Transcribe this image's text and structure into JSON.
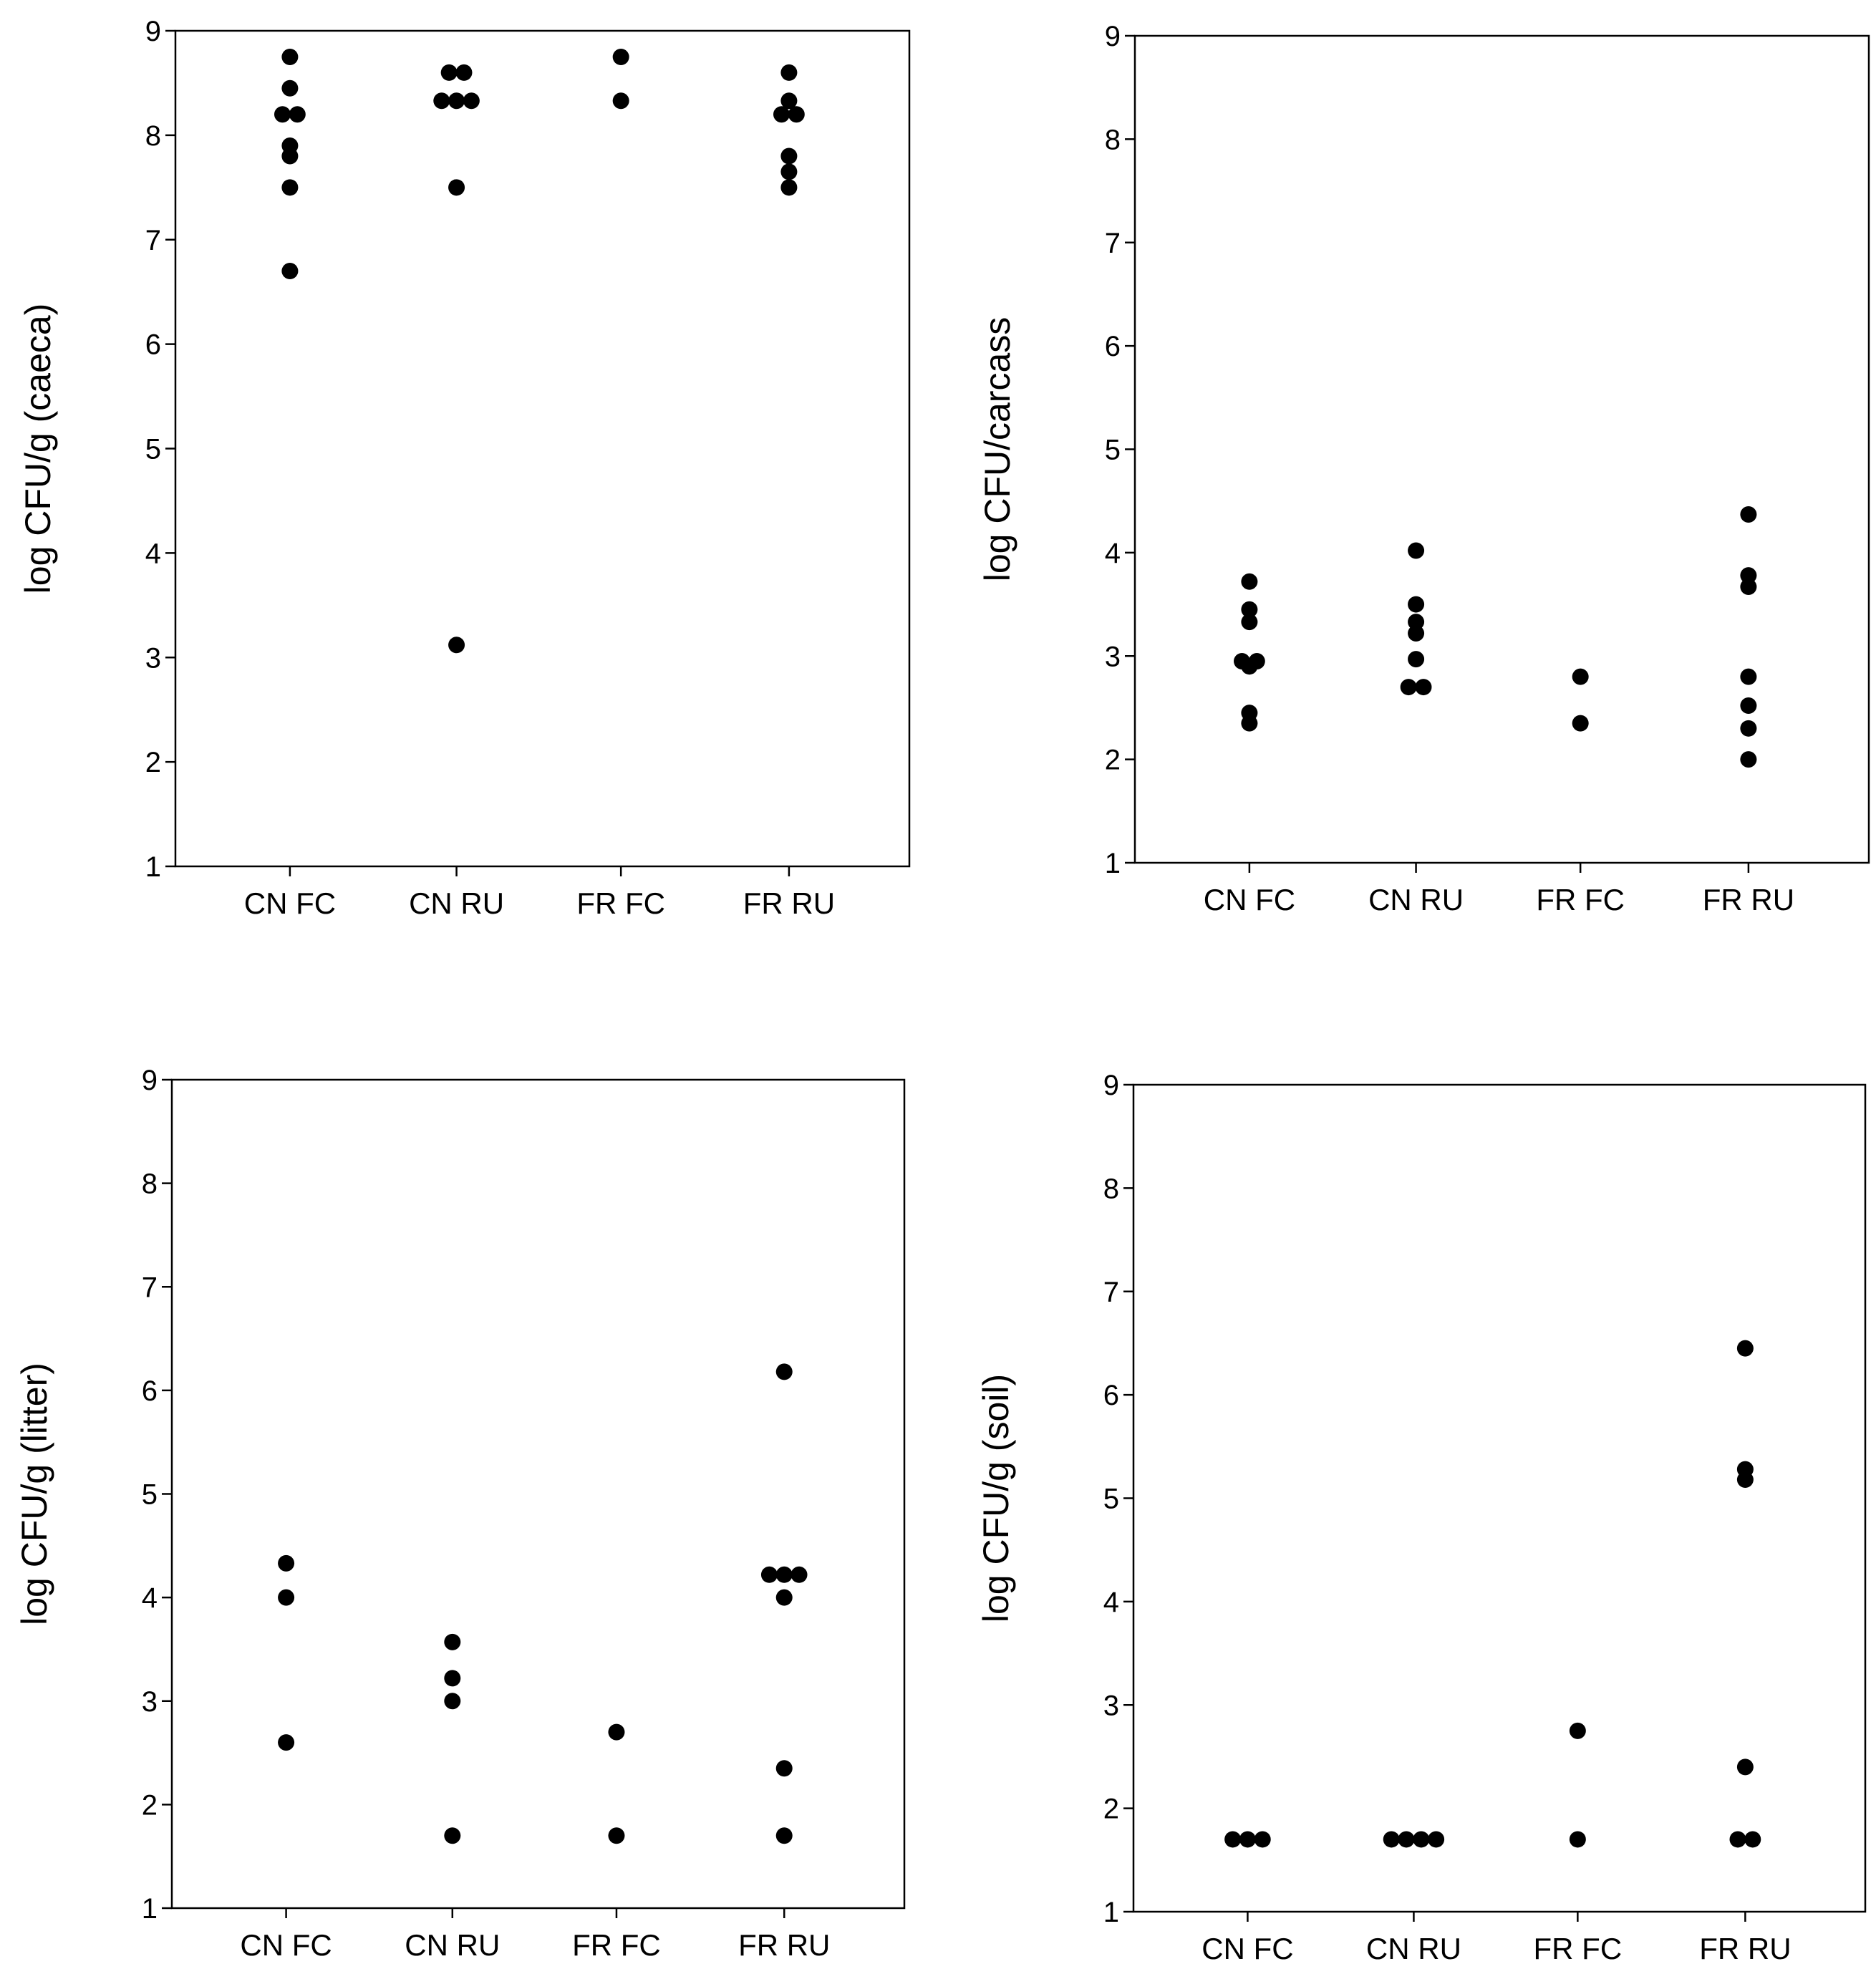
{
  "colors": {
    "point": "#000000",
    "axis": "#000000",
    "background": "#ffffff"
  },
  "chart_data": [
    {
      "type": "scatter",
      "ylabel": "log CFU/g (caeca)",
      "categories": [
        "CN FC",
        "CN RU",
        "FR FC",
        "FR RU"
      ],
      "ylim": [
        1,
        9
      ],
      "yticks": [
        1,
        2,
        3,
        4,
        5,
        6,
        7,
        8,
        9
      ],
      "grid": false,
      "points": [
        {
          "category": "CN FC",
          "y": 8.75
        },
        {
          "category": "CN FC",
          "y": 8.45
        },
        {
          "category": "CN FC",
          "y": 8.2
        },
        {
          "category": "CN FC",
          "y": 8.2
        },
        {
          "category": "CN FC",
          "y": 7.9
        },
        {
          "category": "CN FC",
          "y": 7.8
        },
        {
          "category": "CN FC",
          "y": 7.5
        },
        {
          "category": "CN FC",
          "y": 6.7
        },
        {
          "category": "CN RU",
          "y": 8.6
        },
        {
          "category": "CN RU",
          "y": 8.6
        },
        {
          "category": "CN RU",
          "y": 8.33
        },
        {
          "category": "CN RU",
          "y": 8.33
        },
        {
          "category": "CN RU",
          "y": 8.33
        },
        {
          "category": "CN RU",
          "y": 7.5
        },
        {
          "category": "CN RU",
          "y": 3.12
        },
        {
          "category": "FR FC",
          "y": 8.75
        },
        {
          "category": "FR FC",
          "y": 8.33
        },
        {
          "category": "FR RU",
          "y": 8.6
        },
        {
          "category": "FR RU",
          "y": 8.33
        },
        {
          "category": "FR RU",
          "y": 8.2
        },
        {
          "category": "FR RU",
          "y": 8.2
        },
        {
          "category": "FR RU",
          "y": 7.8
        },
        {
          "category": "FR RU",
          "y": 7.65
        },
        {
          "category": "FR RU",
          "y": 7.5
        }
      ]
    },
    {
      "type": "scatter",
      "ylabel": "log CFU/carcass",
      "categories": [
        "CN FC",
        "CN RU",
        "FR FC",
        "FR RU"
      ],
      "ylim": [
        1,
        9
      ],
      "yticks": [
        1,
        2,
        3,
        4,
        5,
        6,
        7,
        8,
        9
      ],
      "grid": false,
      "points": [
        {
          "category": "CN FC",
          "y": 3.72
        },
        {
          "category": "CN FC",
          "y": 3.45
        },
        {
          "category": "CN FC",
          "y": 3.33
        },
        {
          "category": "CN FC",
          "y": 2.95
        },
        {
          "category": "CN FC",
          "y": 2.95
        },
        {
          "category": "CN FC",
          "y": 2.9
        },
        {
          "category": "CN FC",
          "y": 2.45
        },
        {
          "category": "CN FC",
          "y": 2.35
        },
        {
          "category": "CN RU",
          "y": 4.02
        },
        {
          "category": "CN RU",
          "y": 3.5
        },
        {
          "category": "CN RU",
          "y": 3.33
        },
        {
          "category": "CN RU",
          "y": 3.22
        },
        {
          "category": "CN RU",
          "y": 2.97
        },
        {
          "category": "CN RU",
          "y": 2.7
        },
        {
          "category": "CN RU",
          "y": 2.7
        },
        {
          "category": "FR FC",
          "y": 2.8
        },
        {
          "category": "FR FC",
          "y": 2.35
        },
        {
          "category": "FR RU",
          "y": 4.37
        },
        {
          "category": "FR RU",
          "y": 3.78
        },
        {
          "category": "FR RU",
          "y": 3.67
        },
        {
          "category": "FR RU",
          "y": 2.8
        },
        {
          "category": "FR RU",
          "y": 2.52
        },
        {
          "category": "FR RU",
          "y": 2.3
        },
        {
          "category": "FR RU",
          "y": 2.0
        }
      ]
    },
    {
      "type": "scatter",
      "ylabel": "log CFU/g (litter)",
      "categories": [
        "CN FC",
        "CN RU",
        "FR FC",
        "FR RU"
      ],
      "ylim": [
        1,
        9
      ],
      "yticks": [
        1,
        2,
        3,
        4,
        5,
        6,
        7,
        8,
        9
      ],
      "grid": false,
      "points": [
        {
          "category": "CN FC",
          "y": 4.33
        },
        {
          "category": "CN FC",
          "y": 4.0
        },
        {
          "category": "CN FC",
          "y": 2.6
        },
        {
          "category": "CN RU",
          "y": 3.57
        },
        {
          "category": "CN RU",
          "y": 3.22
        },
        {
          "category": "CN RU",
          "y": 3.0
        },
        {
          "category": "CN RU",
          "y": 1.7
        },
        {
          "category": "FR FC",
          "y": 2.7
        },
        {
          "category": "FR FC",
          "y": 1.7
        },
        {
          "category": "FR RU",
          "y": 6.18
        },
        {
          "category": "FR RU",
          "y": 4.22
        },
        {
          "category": "FR RU",
          "y": 4.22
        },
        {
          "category": "FR RU",
          "y": 4.22
        },
        {
          "category": "FR RU",
          "y": 4.0
        },
        {
          "category": "FR RU",
          "y": 2.35
        },
        {
          "category": "FR RU",
          "y": 1.7
        }
      ]
    },
    {
      "type": "scatter",
      "ylabel": "log CFU/g (soil)",
      "categories": [
        "CN FC",
        "CN RU",
        "FR FC",
        "FR RU"
      ],
      "ylim": [
        1,
        9
      ],
      "yticks": [
        1,
        2,
        3,
        4,
        5,
        6,
        7,
        8,
        9
      ],
      "grid": false,
      "points": [
        {
          "category": "CN FC",
          "y": 1.7
        },
        {
          "category": "CN FC",
          "y": 1.7
        },
        {
          "category": "CN FC",
          "y": 1.7
        },
        {
          "category": "CN RU",
          "y": 1.7
        },
        {
          "category": "CN RU",
          "y": 1.7
        },
        {
          "category": "CN RU",
          "y": 1.7
        },
        {
          "category": "CN RU",
          "y": 1.7
        },
        {
          "category": "FR FC",
          "y": 2.75
        },
        {
          "category": "FR FC",
          "y": 1.7
        },
        {
          "category": "FR RU",
          "y": 6.45
        },
        {
          "category": "FR RU",
          "y": 5.28
        },
        {
          "category": "FR RU",
          "y": 5.18
        },
        {
          "category": "FR RU",
          "y": 2.4
        },
        {
          "category": "FR RU",
          "y": 1.7
        },
        {
          "category": "FR RU",
          "y": 1.7
        }
      ]
    }
  ]
}
